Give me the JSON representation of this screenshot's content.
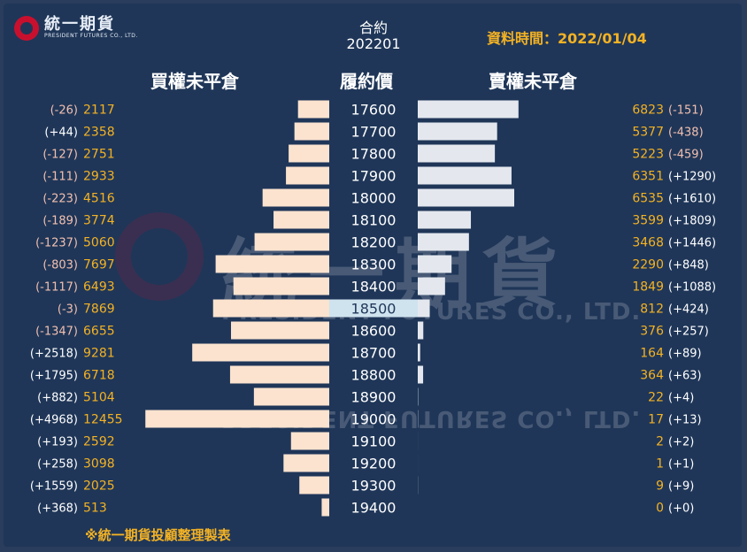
{
  "logo": {
    "name_cn": "統一期貨",
    "name_en": "PRESIDENT FUTURES CO., LTD."
  },
  "contract": {
    "label": "合約",
    "value": "202201"
  },
  "data_time": "資料時間：2022/01/04",
  "footer_note": "※統一期貨投顧整理製表",
  "watermark": {
    "cn": "統一期貨",
    "en": "PRESIDENT FUTURES CO., LTD."
  },
  "colors": {
    "background": "#1f3658",
    "call_bar": "#fbe3cf",
    "put_bar": "#e4e8ee",
    "value_text": "#f4b223",
    "change_text": "#f2c0b0"
  },
  "chart_data": {
    "type": "bar",
    "orientation": "horizontal-butterfly",
    "title": "",
    "left_header": "買權未平倉",
    "center_header": "履約價",
    "right_header": "賣權未平倉",
    "categories": [
      "17600",
      "17700",
      "17800",
      "17900",
      "18000",
      "18100",
      "18200",
      "18300",
      "18400",
      "18500",
      "18600",
      "18700",
      "18800",
      "18900",
      "19000",
      "19100",
      "19200",
      "19300",
      "19400"
    ],
    "highlight_category": "18500",
    "series": [
      {
        "name": "買權未平倉",
        "values": [
          2117,
          2358,
          2751,
          2933,
          4516,
          3774,
          5060,
          7697,
          6493,
          7869,
          6655,
          9281,
          6718,
          5104,
          12455,
          2592,
          3098,
          2025,
          513
        ],
        "changes": [
          "(-26)",
          "(+44)",
          "(-127)",
          "(-111)",
          "(-223)",
          "(-189)",
          "(-1237)",
          "(-803)",
          "(-1117)",
          "(-3)",
          "(-1347)",
          "(+2518)",
          "(+1795)",
          "(+882)",
          "(+4968)",
          "(+193)",
          "(+258)",
          "(+1559)",
          "(+368)"
        ]
      },
      {
        "name": "賣權未平倉",
        "values": [
          6823,
          5377,
          5223,
          6351,
          6535,
          3599,
          3468,
          2290,
          1849,
          812,
          376,
          164,
          364,
          22,
          17,
          2,
          1,
          9,
          0
        ],
        "changes": [
          "(-151)",
          "(-438)",
          "(-459)",
          "(+1290)",
          "(+1610)",
          "(+1809)",
          "(+1446)",
          "(+848)",
          "(+1088)",
          "(+424)",
          "(+257)",
          "(+89)",
          "(+63)",
          "(+4)",
          "(+13)",
          "(+2)",
          "(+1)",
          "(+9)",
          "(+0)"
        ]
      }
    ]
  }
}
